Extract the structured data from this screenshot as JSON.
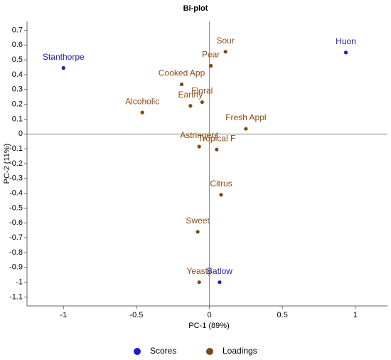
{
  "chart_data": {
    "type": "scatter",
    "title": "Bi-plot",
    "xlabel": "PC-1 (89%)",
    "ylabel": "PC-2 (11%)",
    "xlim": [
      -1.25,
      1.22
    ],
    "ylim": [
      -1.16,
      0.76
    ],
    "xticks": [
      -1,
      -0.5,
      0,
      0.5,
      1
    ],
    "yticks": [
      0.7,
      0.6,
      0.5,
      0.4,
      0.3,
      0.2,
      0.1,
      0,
      -0.1,
      -0.2,
      -0.3,
      -0.4,
      -0.5,
      -0.6,
      -0.7,
      -0.8,
      -0.9,
      -1,
      -1.1
    ],
    "legend": "bottom",
    "series": [
      {
        "name": "Scores",
        "color": "#1a1adc",
        "label_color": "#2020c0",
        "labels": [
          "Stanthorpe",
          "Huon",
          "Batlow"
        ],
        "x": [
          -1.0,
          0.935,
          0.07
        ],
        "y": [
          0.445,
          0.55,
          -1.0
        ]
      },
      {
        "name": "Loadings",
        "color": "#7a4a12",
        "label_color": "#8a4d10",
        "labels": [
          "Sour",
          "Pear",
          "Cooked App",
          "Floral",
          "Earthy",
          "Alcoholic",
          "Fresh Appl",
          "Astringent",
          "Tropical F",
          "Citrus",
          "Sweet",
          "Yeasty"
        ],
        "x": [
          0.11,
          0.01,
          -0.19,
          -0.05,
          -0.13,
          -0.46,
          0.25,
          -0.07,
          0.05,
          0.08,
          -0.08,
          -0.07
        ],
        "y": [
          0.555,
          0.46,
          0.335,
          0.215,
          0.19,
          0.145,
          0.035,
          -0.085,
          -0.105,
          -0.41,
          -0.66,
          -1.0
        ]
      }
    ]
  }
}
